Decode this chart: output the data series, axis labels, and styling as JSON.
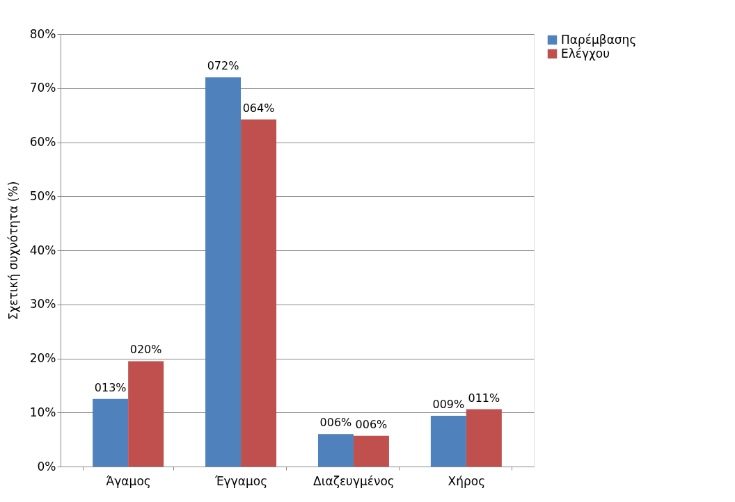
{
  "chart_data": {
    "type": "bar",
    "ylabel": "Σχετική συχνότητα (%)",
    "categories": [
      "Άγαμος",
      "Έγγαμος",
      "Διαζευγμένος",
      "Χήρος"
    ],
    "series": [
      {
        "name": "Παρέμβασης",
        "color": "#4f81bd",
        "values": [
          12.5,
          72.0,
          6.0,
          9.4
        ],
        "value_labels": [
          "013%",
          "072%",
          "006%",
          "009%"
        ]
      },
      {
        "name": "Ελέγχου",
        "color": "#c0504d",
        "values": [
          19.5,
          64.2,
          5.7,
          10.6
        ],
        "value_labels": [
          "020%",
          "064%",
          "006%",
          "011%"
        ]
      }
    ],
    "ylim": [
      0,
      80
    ],
    "yticks": [
      {
        "value": 0,
        "label": "0%"
      },
      {
        "value": 10,
        "label": "10%"
      },
      {
        "value": 20,
        "label": "20%"
      },
      {
        "value": 30,
        "label": "30%"
      },
      {
        "value": 40,
        "label": "40%"
      },
      {
        "value": 50,
        "label": "50%"
      },
      {
        "value": 60,
        "label": "60%"
      },
      {
        "value": 70,
        "label": "70%"
      },
      {
        "value": 80,
        "label": "80%"
      }
    ],
    "grid": "y",
    "legend": "right"
  }
}
